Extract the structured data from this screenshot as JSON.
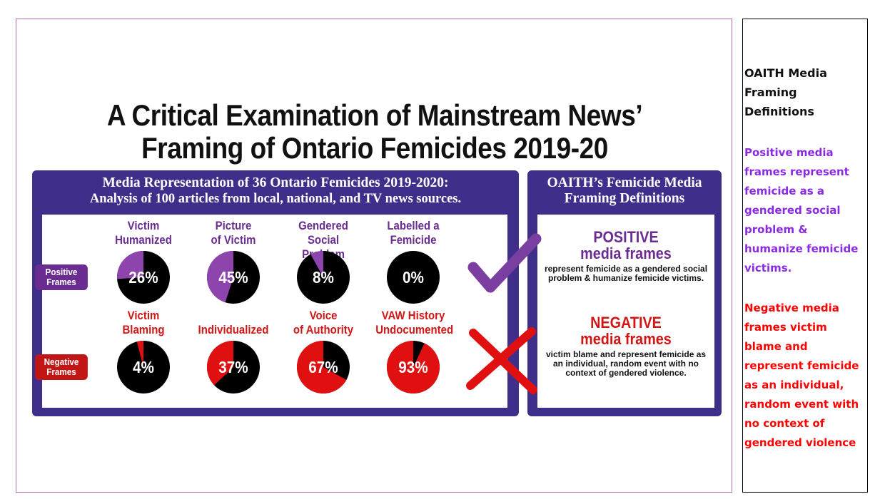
{
  "title": {
    "line1": "A Critical Examination of Mainstream News’",
    "line2": "Framing of Ontario Femicides 2019-20"
  },
  "left_panel": {
    "heading_line1": "Media Representation of 36 Ontario Femicides 2019-2020:",
    "heading_line2": "Analysis of 100 articles from local, national, and TV news sources.",
    "positive_badge": {
      "line1": "Positive",
      "line2": "Frames"
    },
    "negative_badge": {
      "line1": "Negative",
      "line2": "Frames"
    }
  },
  "right_panel": {
    "heading_line1": "OAITH’s Femicide Media",
    "heading_line2": "Framing Definitions",
    "positive_title_line1": "POSITIVE",
    "positive_title_line2": "media frames",
    "positive_desc": "represent femicide as a gendered social problem & humanize femicide victims.",
    "negative_title_line1": "NEGATIVE",
    "negative_title_line2": "media frames",
    "negative_desc": "victim blame and represent femicide as an individual, random event with no context of gendered violence."
  },
  "chart_data": {
    "type": "pie",
    "series": [
      {
        "name": "Positive Frames",
        "color": "#8e44ad",
        "items": [
          {
            "label_line1": "Victim",
            "label_line2": "Humanized",
            "value": 26,
            "display": "26%"
          },
          {
            "label_line1": "Picture",
            "label_line2": "of Victim",
            "value": 45,
            "display": "45%"
          },
          {
            "label_line1": "Gendered",
            "label_line2": "Social Problem",
            "value": 8,
            "display": "8%"
          },
          {
            "label_line1": "Labelled a",
            "label_line2": "Femicide",
            "value": 0,
            "display": "0%"
          }
        ]
      },
      {
        "name": "Negative Frames",
        "color": "#e01010",
        "items": [
          {
            "label_line1": "Victim",
            "label_line2": "Blaming",
            "value": 4,
            "display": "4%"
          },
          {
            "label_line1": "",
            "label_line2": "Individualized",
            "value": 37,
            "display": "37%"
          },
          {
            "label_line1": "Voice",
            "label_line2": "of Authority",
            "value": 67,
            "display": "67%"
          },
          {
            "label_line1": "VAW History",
            "label_line2": "Undocumented",
            "value": 93,
            "display": "93%"
          }
        ]
      }
    ]
  },
  "sidebar": {
    "title": "OAITH Media Framing Definitions",
    "positive_text": "Positive media frames represent femicide as a gendered social problem & humanize femicide victims.",
    "negative_text": "Negative media frames victim blame and represent femicide as an individual, random event with no context of gendered violence"
  },
  "colors": {
    "panel": "#3f2f8a",
    "positive": "#6a2c91",
    "negative": "#c21616",
    "sidebar_positive": "#8a2be2",
    "sidebar_negative": "#ff0000"
  },
  "icons": [
    "checkmark-icon",
    "x-mark-icon"
  ]
}
